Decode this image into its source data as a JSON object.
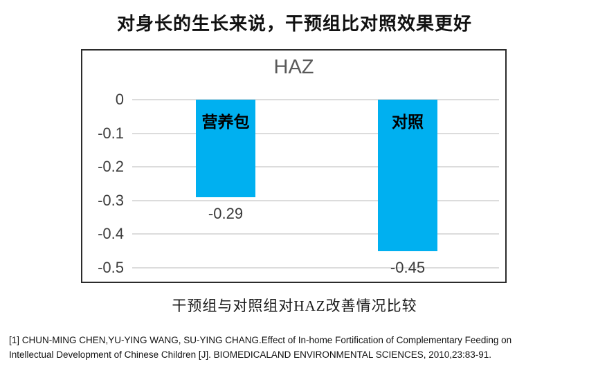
{
  "page": {
    "title": "对身长的生长来说，干预组比对照效果更好",
    "caption": "干预组与对照组对HAZ改善情况比较",
    "citation_lines": [
      "[1] CHUN-MING CHEN,YU-YING WANG, SU-YING CHANG.Effect of In-home Fortification of Complementary Feeding on",
      "Intellectual Development of Chinese Children [J]. BIOMEDICALAND ENVIRONMENTAL SCIENCES, 2010,23:83-91."
    ]
  },
  "chart_data": {
    "type": "bar",
    "title": "HAZ",
    "categories": [
      "营养包",
      "对照"
    ],
    "values": [
      -0.29,
      -0.45
    ],
    "data_labels": [
      "-0.29",
      "-0.45"
    ],
    "xlabel": "",
    "ylabel": "",
    "ylim": [
      -0.5,
      0
    ],
    "yticks": [
      0,
      -0.1,
      -0.2,
      -0.3,
      -0.4,
      -0.5
    ],
    "ytick_labels": [
      "0",
      "-0.1",
      "-0.2",
      "-0.3",
      "-0.4",
      "-0.5"
    ],
    "grid": true,
    "legend_position": "none",
    "bar_color": "#00B0F0",
    "colors": {
      "gridline": "#dcdcdc",
      "axis_label": "#3d3d3d",
      "chart_title": "#595959",
      "frame_border": "#2b2b2b",
      "bar_label": "#000000",
      "value_label": "#3a3a3a"
    }
  }
}
